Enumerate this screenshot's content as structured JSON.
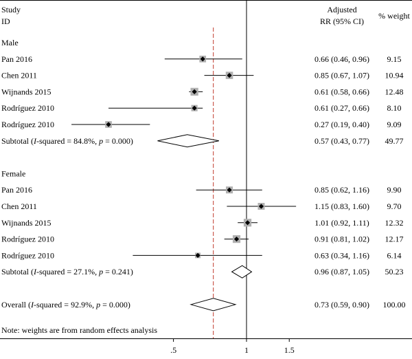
{
  "chart_data": {
    "type": "forest",
    "header": {
      "study_line1": "Study",
      "study_line2": "ID",
      "effect_line1": "Adjusted",
      "effect_line2": "RR (95% CI)",
      "weight": "% weight"
    },
    "x_scale": "log",
    "x_ticks": [
      {
        "value": 0.5,
        "label": ".5"
      },
      {
        "value": 1,
        "label": "1"
      },
      {
        "value": 1.5,
        "label": "1.5"
      }
    ],
    "null_value": 1,
    "overall_effect_line": 0.73,
    "rows": [
      {
        "kind": "group",
        "label": "Male"
      },
      {
        "kind": "study",
        "label": "Pan 2016",
        "rr": 0.66,
        "lo": 0.46,
        "hi": 0.96,
        "text": "0.66 (0.46, 0.96)",
        "weight": "9.15",
        "w": 9.15
      },
      {
        "kind": "study",
        "label": "Chen 2011",
        "rr": 0.85,
        "lo": 0.67,
        "hi": 1.07,
        "text": "0.85 (0.67, 1.07)",
        "weight": "10.94",
        "w": 10.94
      },
      {
        "kind": "study",
        "label": "Wijnands 2015",
        "rr": 0.61,
        "lo": 0.58,
        "hi": 0.66,
        "text": "0.61 (0.58, 0.66)",
        "weight": "12.48",
        "w": 12.48
      },
      {
        "kind": "study",
        "label": "Rodríguez 2010",
        "rr": 0.61,
        "lo": 0.27,
        "hi": 0.66,
        "text": "0.61 (0.27, 0.66)",
        "weight": "8.10",
        "w": 8.1
      },
      {
        "kind": "study",
        "label": "Rodríguez 2010",
        "rr": 0.27,
        "lo": 0.19,
        "hi": 0.4,
        "text": "0.27 (0.19, 0.40)",
        "weight": "9.09",
        "w": 9.09
      },
      {
        "kind": "subtotal",
        "label_prefix": "Subtotal (",
        "i_sym": "I",
        "i_rest": "-squared = 84.8%, ",
        "p_sym": "p",
        "p_rest": " = 0.000)",
        "rr": 0.57,
        "lo": 0.43,
        "hi": 0.77,
        "text": "0.57 (0.43, 0.77)",
        "weight": "49.77"
      },
      {
        "kind": "blank"
      },
      {
        "kind": "group",
        "label": "Female"
      },
      {
        "kind": "study",
        "label": "Pan 2016",
        "rr": 0.85,
        "lo": 0.62,
        "hi": 1.16,
        "text": "0.85 (0.62, 1.16)",
        "weight": "9.90",
        "w": 9.9
      },
      {
        "kind": "study",
        "label": "Chen 2011",
        "rr": 1.15,
        "lo": 0.83,
        "hi": 1.6,
        "text": "1.15 (0.83, 1.60)",
        "weight": "9.70",
        "w": 9.7
      },
      {
        "kind": "study",
        "label": "Wijnands 2015",
        "rr": 1.01,
        "lo": 0.92,
        "hi": 1.11,
        "text": "1.01 (0.92, 1.11)",
        "weight": "12.32",
        "w": 12.32
      },
      {
        "kind": "study",
        "label": "Rodríguez 2010",
        "rr": 0.91,
        "lo": 0.81,
        "hi": 1.02,
        "text": "0.91 (0.81, 1.02)",
        "weight": "12.17",
        "w": 12.17
      },
      {
        "kind": "study",
        "label": "Rodríguez 2010",
        "rr": 0.63,
        "lo": 0.34,
        "hi": 1.16,
        "text": "0.63 (0.34, 1.16)",
        "weight": "6.14",
        "w": 6.14
      },
      {
        "kind": "subtotal",
        "label_prefix": "Subtotal (",
        "i_sym": "I",
        "i_rest": "-squared = 27.1%, ",
        "p_sym": "p",
        "p_rest": " = 0.241)",
        "rr": 0.96,
        "lo": 0.87,
        "hi": 1.05,
        "text": "0.96 (0.87, 1.05)",
        "weight": "50.23"
      },
      {
        "kind": "blank"
      },
      {
        "kind": "overall",
        "label_prefix": "Overall (",
        "i_sym": "I",
        "i_rest": "-squared = 92.9%, ",
        "p_sym": "p",
        "p_rest": " = 0.000)",
        "rr": 0.73,
        "lo": 0.59,
        "hi": 0.9,
        "text": "0.73 (0.59, 0.90)",
        "weight": "100.00"
      }
    ],
    "note": "Note: weights are from random effects analysis",
    "colors": {
      "line": "#000000",
      "reference_line": "#c0392b",
      "marker": "#000000",
      "weight_box": "#b0b0b0"
    }
  }
}
